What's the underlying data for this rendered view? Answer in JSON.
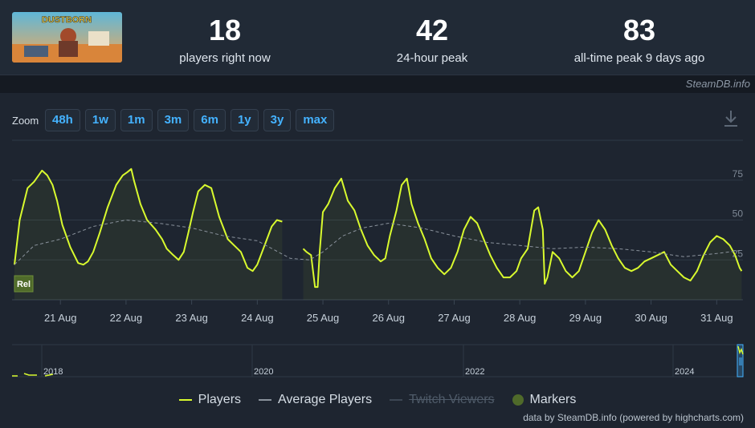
{
  "stats": [
    {
      "value": "18",
      "label": "players right now"
    },
    {
      "value": "42",
      "label": "24-hour peak"
    },
    {
      "value": "83",
      "label": "all-time peak 9 days ago"
    }
  ],
  "game": {
    "thumb_text": "DUSTBORN"
  },
  "credit": "SteamDB.info",
  "zoom": {
    "label": "Zoom",
    "buttons": [
      "48h",
      "1w",
      "1m",
      "3m",
      "6m",
      "1y",
      "3y",
      "max"
    ]
  },
  "legend": {
    "players": "Players",
    "average": "Average Players",
    "twitch": "Twitch Viewers",
    "markers": "Markers"
  },
  "data_credit": "data by SteamDB.info (powered by highcharts.com)",
  "colors": {
    "players": "#d9fa2e",
    "average": "#8a929c",
    "grid": "#2f3946",
    "bg": "#1e2530"
  },
  "chart_data": {
    "type": "line",
    "y_ticks": [
      "25",
      "50",
      "75"
    ],
    "ylim": [
      0,
      100
    ],
    "x_ticks": [
      "21 Aug",
      "22 Aug",
      "23 Aug",
      "24 Aug",
      "25 Aug",
      "26 Aug",
      "27 Aug",
      "28 Aug",
      "29 Aug",
      "30 Aug",
      "31 Aug"
    ],
    "xlim": [
      20.3,
      31.4
    ],
    "marker_label": "Rel",
    "series": [
      {
        "name": "Players",
        "points": [
          [
            20.3,
            22
          ],
          [
            20.38,
            50
          ],
          [
            20.5,
            70
          ],
          [
            20.6,
            74
          ],
          [
            20.72,
            81
          ],
          [
            20.8,
            78
          ],
          [
            20.88,
            72
          ],
          [
            20.95,
            62
          ],
          [
            21.03,
            47
          ],
          [
            21.15,
            33
          ],
          [
            21.27,
            23
          ],
          [
            21.35,
            22
          ],
          [
            21.42,
            24
          ],
          [
            21.5,
            30
          ],
          [
            21.6,
            42
          ],
          [
            21.72,
            58
          ],
          [
            21.85,
            72
          ],
          [
            21.95,
            78
          ],
          [
            22.02,
            80
          ],
          [
            22.08,
            82
          ],
          [
            22.12,
            75
          ],
          [
            22.22,
            60
          ],
          [
            22.32,
            50
          ],
          [
            22.45,
            44
          ],
          [
            22.55,
            38
          ],
          [
            22.62,
            32
          ],
          [
            22.72,
            28
          ],
          [
            22.8,
            25
          ],
          [
            22.88,
            30
          ],
          [
            22.95,
            42
          ],
          [
            23.02,
            55
          ],
          [
            23.1,
            68
          ],
          [
            23.2,
            72
          ],
          [
            23.3,
            70
          ],
          [
            23.42,
            52
          ],
          [
            23.55,
            38
          ],
          [
            23.65,
            34
          ],
          [
            23.75,
            30
          ],
          [
            23.85,
            20
          ],
          [
            23.93,
            18
          ],
          [
            24.0,
            22
          ],
          [
            24.12,
            35
          ],
          [
            24.22,
            46
          ],
          [
            24.3,
            50
          ],
          [
            24.38,
            49
          ],
          [
            24.7,
            32
          ],
          [
            24.75,
            30
          ],
          [
            24.82,
            28
          ],
          [
            24.88,
            8
          ],
          [
            24.92,
            8
          ],
          [
            24.95,
            30
          ],
          [
            25.0,
            55
          ],
          [
            25.08,
            60
          ],
          [
            25.18,
            70
          ],
          [
            25.28,
            76
          ],
          [
            25.38,
            62
          ],
          [
            25.48,
            56
          ],
          [
            25.58,
            44
          ],
          [
            25.68,
            34
          ],
          [
            25.78,
            28
          ],
          [
            25.88,
            24
          ],
          [
            25.95,
            26
          ],
          [
            26.02,
            40
          ],
          [
            26.12,
            56
          ],
          [
            26.2,
            72
          ],
          [
            26.28,
            76
          ],
          [
            26.35,
            60
          ],
          [
            26.45,
            48
          ],
          [
            26.55,
            38
          ],
          [
            26.65,
            26
          ],
          [
            26.75,
            20
          ],
          [
            26.85,
            16
          ],
          [
            26.95,
            20
          ],
          [
            27.05,
            30
          ],
          [
            27.15,
            44
          ],
          [
            27.25,
            52
          ],
          [
            27.35,
            48
          ],
          [
            27.45,
            38
          ],
          [
            27.55,
            28
          ],
          [
            27.65,
            20
          ],
          [
            27.75,
            14
          ],
          [
            27.85,
            14
          ],
          [
            27.95,
            18
          ],
          [
            28.02,
            26
          ],
          [
            28.12,
            32
          ],
          [
            28.22,
            56
          ],
          [
            28.28,
            58
          ],
          [
            28.35,
            44
          ],
          [
            28.38,
            10
          ],
          [
            28.42,
            14
          ],
          [
            28.5,
            30
          ],
          [
            28.6,
            26
          ],
          [
            28.7,
            18
          ],
          [
            28.8,
            14
          ],
          [
            28.9,
            18
          ],
          [
            29.0,
            30
          ],
          [
            29.1,
            42
          ],
          [
            29.2,
            50
          ],
          [
            29.3,
            44
          ],
          [
            29.4,
            34
          ],
          [
            29.5,
            26
          ],
          [
            29.6,
            20
          ],
          [
            29.7,
            18
          ],
          [
            29.8,
            20
          ],
          [
            29.9,
            24
          ],
          [
            30.0,
            26
          ],
          [
            30.1,
            28
          ],
          [
            30.2,
            30
          ],
          [
            30.3,
            22
          ],
          [
            30.4,
            18
          ],
          [
            30.5,
            14
          ],
          [
            30.6,
            12
          ],
          [
            30.7,
            18
          ],
          [
            30.8,
            28
          ],
          [
            30.9,
            36
          ],
          [
            31.0,
            40
          ],
          [
            31.1,
            38
          ],
          [
            31.2,
            34
          ],
          [
            31.28,
            28
          ],
          [
            31.35,
            20
          ],
          [
            31.38,
            18
          ]
        ]
      },
      {
        "name": "Average Players",
        "points": [
          [
            20.3,
            22
          ],
          [
            20.6,
            34
          ],
          [
            21.0,
            38
          ],
          [
            21.5,
            46
          ],
          [
            22.0,
            50
          ],
          [
            22.5,
            48
          ],
          [
            23.0,
            45
          ],
          [
            23.5,
            40
          ],
          [
            24.0,
            37
          ],
          [
            24.5,
            26
          ],
          [
            24.8,
            25
          ],
          [
            25.0,
            30
          ],
          [
            25.3,
            40
          ],
          [
            25.6,
            45
          ],
          [
            26.0,
            48
          ],
          [
            26.5,
            45
          ],
          [
            27.0,
            40
          ],
          [
            27.5,
            36
          ],
          [
            28.0,
            34
          ],
          [
            28.5,
            32
          ],
          [
            29.0,
            33
          ],
          [
            29.5,
            32
          ],
          [
            30.0,
            30
          ],
          [
            30.5,
            27
          ],
          [
            31.0,
            29
          ],
          [
            31.38,
            31
          ]
        ]
      }
    ],
    "navigator_ticks": [
      "2018",
      "2020",
      "2022",
      "2024"
    ]
  }
}
